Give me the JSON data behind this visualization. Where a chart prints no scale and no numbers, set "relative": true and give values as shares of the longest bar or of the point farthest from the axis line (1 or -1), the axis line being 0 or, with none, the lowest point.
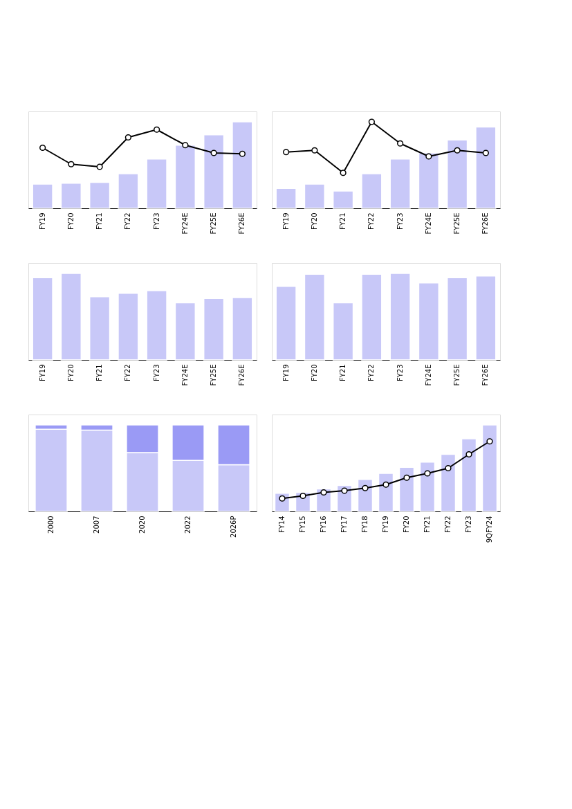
{
  "chart_data": [
    {
      "type": "bar",
      "relative": true,
      "marker": "circle",
      "categories": [
        "FY19",
        "FY20",
        "FY21",
        "FY22",
        "FY23",
        "FY24E",
        "FY25E",
        "FY26E"
      ],
      "series": [
        {
          "color": "#c8c8f8",
          "values": [
            0.28,
            0.29,
            0.3,
            0.4,
            0.57,
            0.73,
            0.85,
            1.0
          ]
        },
        {
          "type": "line",
          "color": "#000000",
          "values": [
            0.7,
            0.51,
            0.48,
            0.82,
            0.91,
            0.73,
            0.64,
            0.63
          ]
        }
      ]
    },
    {
      "type": "bar",
      "relative": true,
      "marker": "circle",
      "categories": [
        "FY19",
        "FY20",
        "FY21",
        "FY22",
        "FY23",
        "FY24E",
        "FY25E",
        "FY26E"
      ],
      "series": [
        {
          "color": "#c8c8f8",
          "values": [
            0.23,
            0.28,
            0.2,
            0.4,
            0.57,
            0.64,
            0.79,
            0.94
          ]
        },
        {
          "type": "line",
          "color": "#000000",
          "values": [
            0.65,
            0.67,
            0.41,
            1.0,
            0.75,
            0.6,
            0.67,
            0.64
          ]
        }
      ]
    },
    {
      "type": "bar",
      "relative": true,
      "categories": [
        "FY19",
        "FY20",
        "FY21",
        "FY22",
        "FY23",
        "FY24E",
        "FY25E",
        "FY26E"
      ],
      "series": [
        {
          "color": "#c8c8f8",
          "values": [
            0.95,
            1.0,
            0.73,
            0.77,
            0.8,
            0.66,
            0.71,
            0.72
          ]
        }
      ]
    },
    {
      "type": "bar",
      "relative": true,
      "categories": [
        "FY19",
        "FY20",
        "FY21",
        "FY22",
        "FY23",
        "FY24E",
        "FY25E",
        "FY26E"
      ],
      "series": [
        {
          "color": "#c8c8f8",
          "values": [
            0.85,
            0.99,
            0.66,
            0.99,
            1.0,
            0.89,
            0.95,
            0.97
          ]
        }
      ]
    },
    {
      "type": "bar",
      "relative": true,
      "stacked": true,
      "categories": [
        "2000",
        "2007",
        "2020",
        "2022",
        "2026P"
      ],
      "series": [
        {
          "color": "#c8c8f8",
          "values": [
            0.95,
            0.94,
            0.68,
            0.59,
            0.54
          ]
        },
        {
          "color": "#9a9af5",
          "values": [
            0.05,
            0.06,
            0.32,
            0.41,
            0.46
          ]
        }
      ]
    },
    {
      "type": "bar",
      "relative": true,
      "marker": "circle",
      "categories": [
        "FY14",
        "FY15",
        "FY16",
        "FY17",
        "FY18",
        "FY19",
        "FY20",
        "FY21",
        "FY22",
        "FY23",
        "9QFY24"
      ],
      "series": [
        {
          "color": "#c8c8f8",
          "values": [
            0.21,
            0.22,
            0.26,
            0.3,
            0.37,
            0.44,
            0.51,
            0.57,
            0.66,
            0.84,
            1.0
          ]
        },
        {
          "type": "line",
          "color": "#000000",
          "values": [
            0.15,
            0.18,
            0.22,
            0.24,
            0.27,
            0.31,
            0.39,
            0.44,
            0.5,
            0.66,
            0.81
          ]
        }
      ]
    }
  ]
}
